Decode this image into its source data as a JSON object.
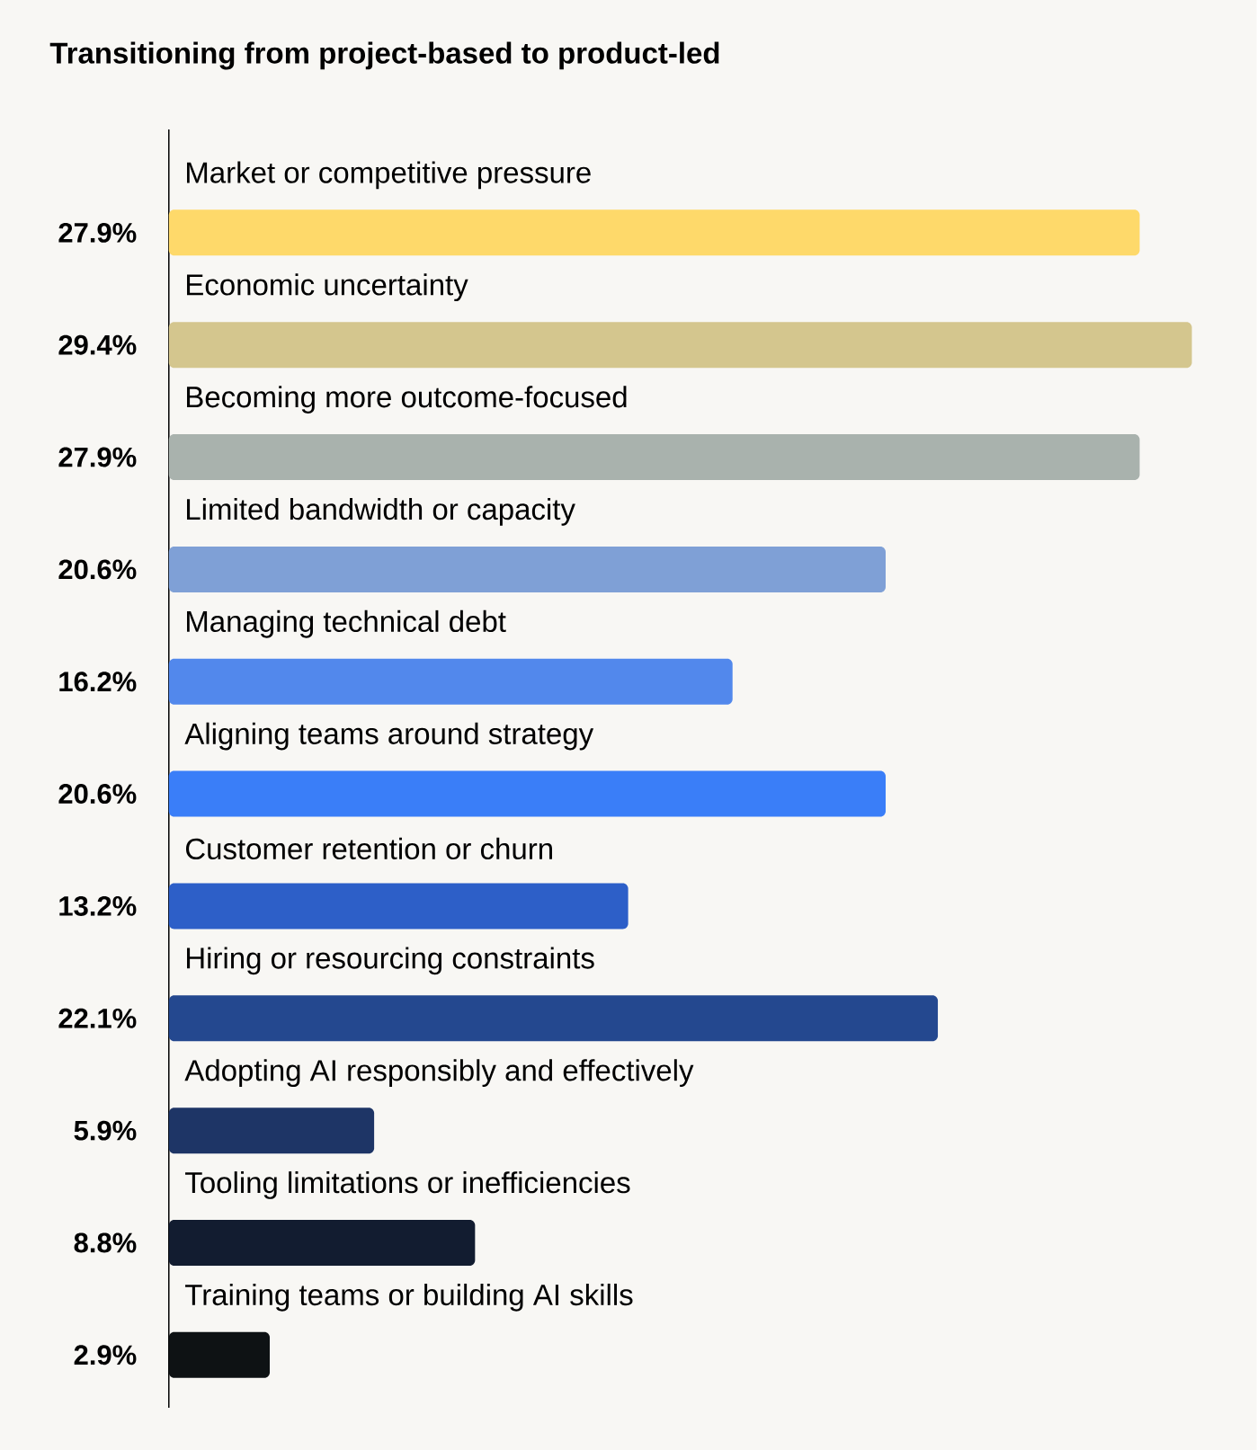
{
  "chart_data": {
    "type": "bar",
    "orientation": "horizontal",
    "title": "Transitioning from project-based to product-led",
    "categories": [
      "Market or competitive pressure",
      "Economic uncertainty",
      "Becoming more outcome-focused",
      "Limited bandwidth or capacity",
      "Managing technical debt",
      "Aligning teams around strategy",
      "Customer retention or churn",
      "Hiring or resourcing constraints",
      "Adopting AI responsibly and effectively",
      "Tooling limitations or inefficiencies",
      "Training teams or building AI skills"
    ],
    "values": [
      27.9,
      29.4,
      27.9,
      20.6,
      16.2,
      20.6,
      13.2,
      22.1,
      5.9,
      8.8,
      2.9
    ],
    "value_labels": [
      "27.9%",
      "29.4%",
      "27.9%",
      "20.6%",
      "16.2%",
      "20.6%",
      "13.2%",
      "22.1%",
      "5.9%",
      "8.8%",
      "2.9%"
    ],
    "colors": [
      "#fed96a",
      "#d4c68e",
      "#a9b2ad",
      "#7fa0d6",
      "#5288ec",
      "#3a7ef8",
      "#2d5fc8",
      "#24488f",
      "#1e3566",
      "#121c30",
      "#0e1214"
    ]
  }
}
